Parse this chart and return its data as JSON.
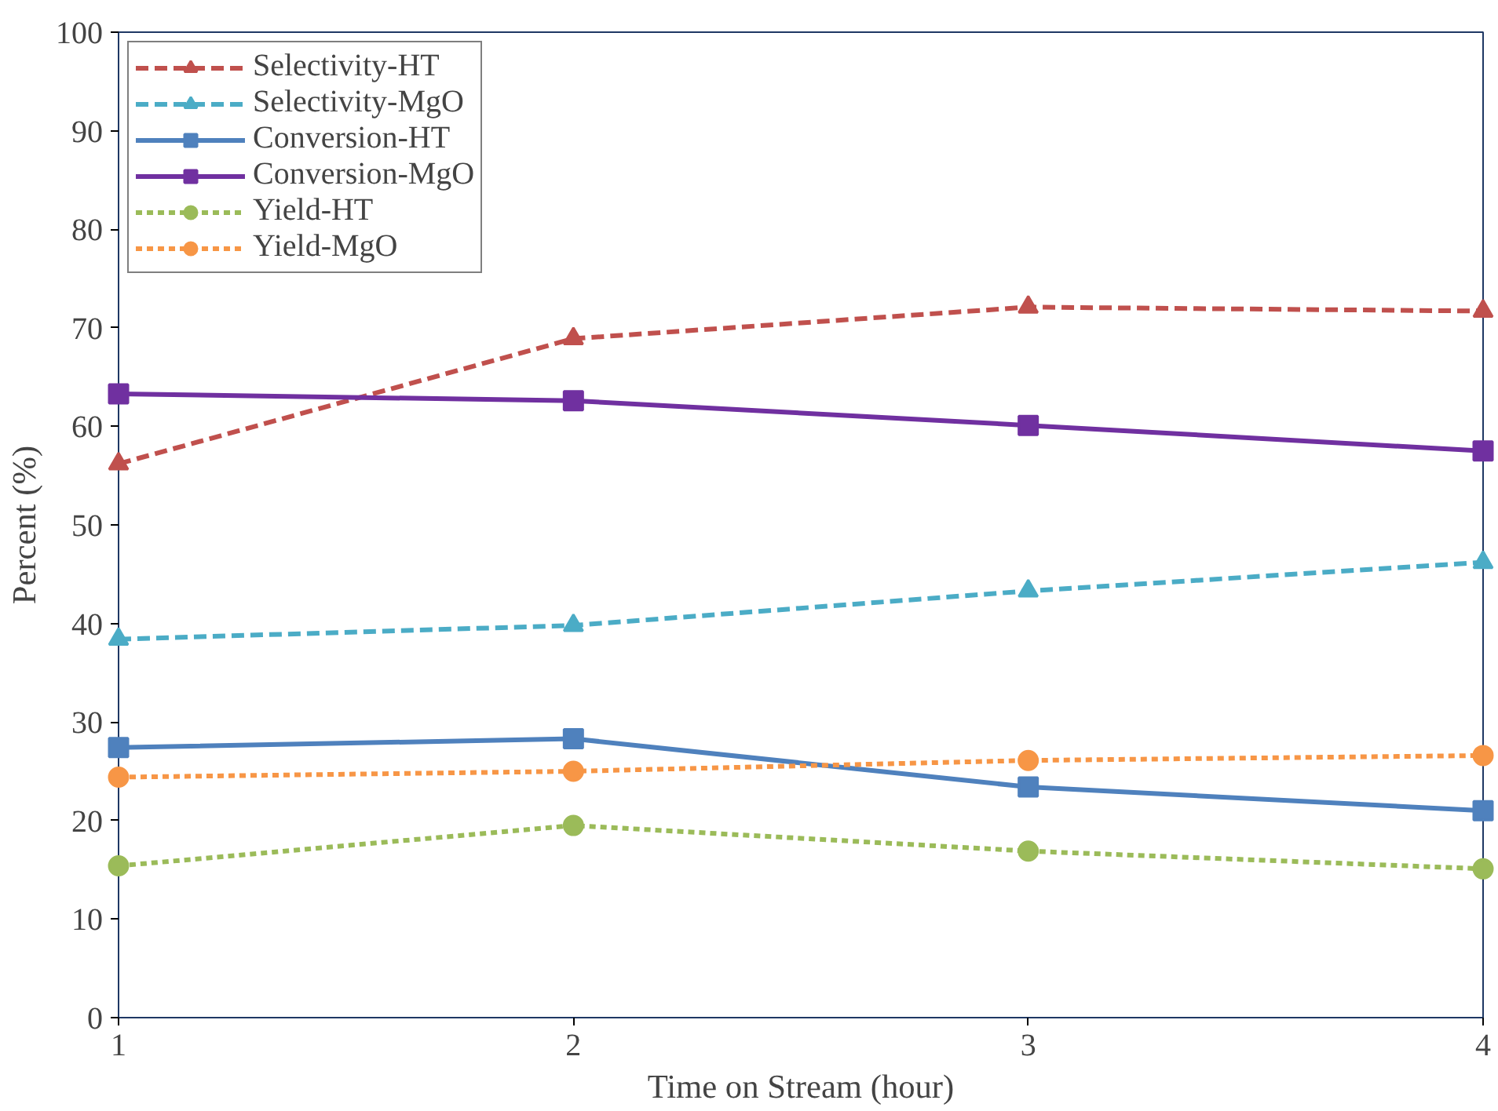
{
  "chart_data": {
    "type": "line",
    "xlabel": "Time on Stream (hour)",
    "ylabel": "Percent (%)",
    "x": [
      1,
      2,
      3,
      4
    ],
    "xlim": [
      1,
      4
    ],
    "xticks": [
      1,
      2,
      3,
      4
    ],
    "ylim": [
      0,
      100
    ],
    "yticks": [
      0,
      10,
      20,
      30,
      40,
      50,
      60,
      70,
      80,
      90,
      100
    ],
    "grid": false,
    "legend": "top left",
    "series": [
      {
        "name": "Selectivity-HT",
        "color": "#c0504d",
        "values": [
          56.2,
          68.9,
          72.1,
          71.7
        ],
        "marker": "triangle",
        "line_style": "dashed"
      },
      {
        "name": "Selectivity-MgO",
        "color": "#4bacc6",
        "values": [
          38.4,
          39.8,
          43.3,
          46.2
        ],
        "marker": "triangle",
        "line_style": "dashed"
      },
      {
        "name": "Conversion-HT",
        "color": "#4f81bd",
        "values": [
          27.4,
          28.3,
          23.4,
          21.0
        ],
        "marker": "square",
        "line_style": "solid"
      },
      {
        "name": "Conversion-MgO",
        "color": "#7030a0",
        "values": [
          63.3,
          62.6,
          60.1,
          57.5
        ],
        "marker": "square",
        "line_style": "solid"
      },
      {
        "name": "Yield-HT",
        "color": "#9bbb59",
        "values": [
          15.4,
          19.5,
          16.9,
          15.1
        ],
        "marker": "circle",
        "line_style": "dotted"
      },
      {
        "name": "Yield-MgO",
        "color": "#f79646",
        "values": [
          24.4,
          25.0,
          26.1,
          26.6
        ],
        "marker": "circle",
        "line_style": "dotted"
      }
    ]
  }
}
